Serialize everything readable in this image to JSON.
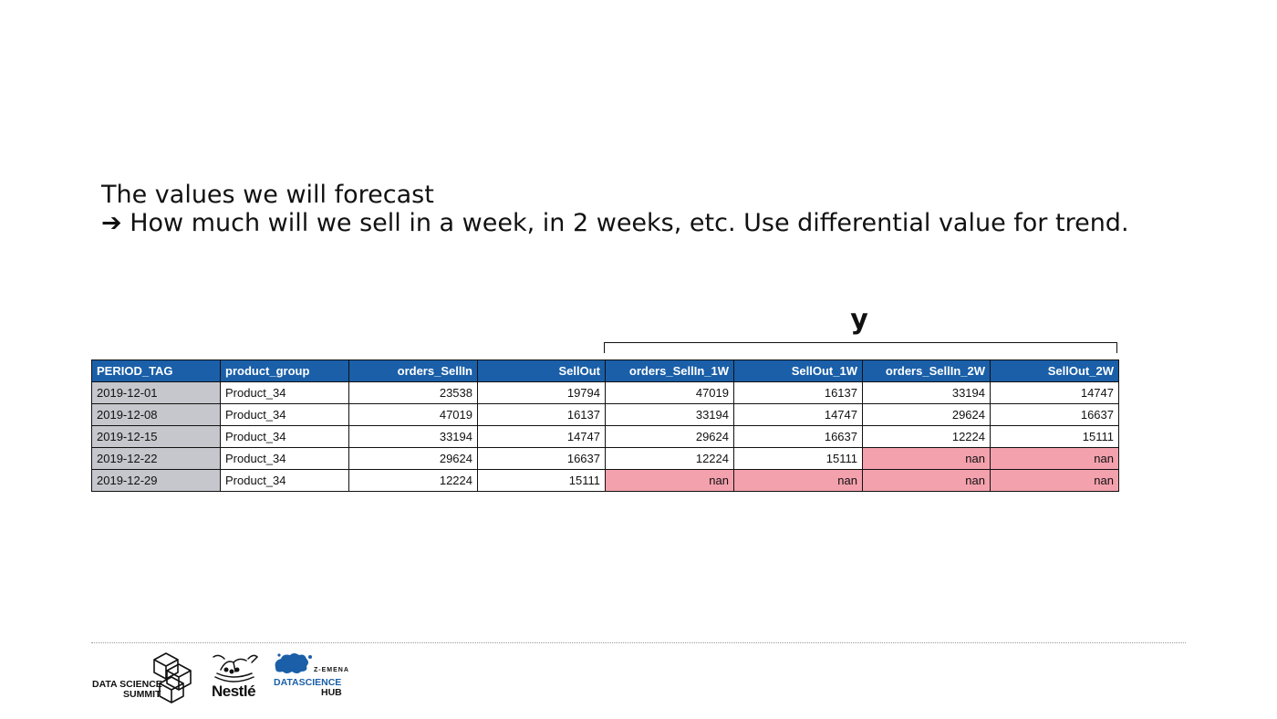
{
  "heading": {
    "line1": "The values we will forecast",
    "line2": "➔ How much will we sell in a week, in 2 weeks, etc. Use differential value for trend."
  },
  "target_label": "y",
  "table": {
    "columns": [
      "PERIOD_TAG",
      "product_group",
      "orders_SellIn",
      "SellOut",
      "orders_SellIn_1W",
      "SellOut_1W",
      "orders_SellIn_2W",
      "SellOut_2W"
    ],
    "rows": [
      [
        "2019-12-01",
        "Product_34",
        "23538",
        "19794",
        "47019",
        "16137",
        "33194",
        "14747"
      ],
      [
        "2019-12-08",
        "Product_34",
        "47019",
        "16137",
        "33194",
        "14747",
        "29624",
        "16637"
      ],
      [
        "2019-12-15",
        "Product_34",
        "33194",
        "14747",
        "29624",
        "16637",
        "12224",
        "15111"
      ],
      [
        "2019-12-22",
        "Product_34",
        "29624",
        "16637",
        "12224",
        "15111",
        "nan",
        "nan"
      ],
      [
        "2019-12-29",
        "Product_34",
        "12224",
        "15111",
        "nan",
        "nan",
        "nan",
        "nan"
      ]
    ]
  },
  "colors": {
    "header_bg": "#1a5fa8",
    "period_bg": "#c5c7cc",
    "nan_bg": "#f3a1ad"
  },
  "logos": {
    "dss": {
      "line1": "DATA SCIENCE",
      "line2": "SUMMIT"
    },
    "nestle": {
      "wordmark": "Nestlé"
    },
    "hub": {
      "small": "Z-EMENA",
      "line1": "DATASCIENCE",
      "line2": "HUB"
    }
  }
}
